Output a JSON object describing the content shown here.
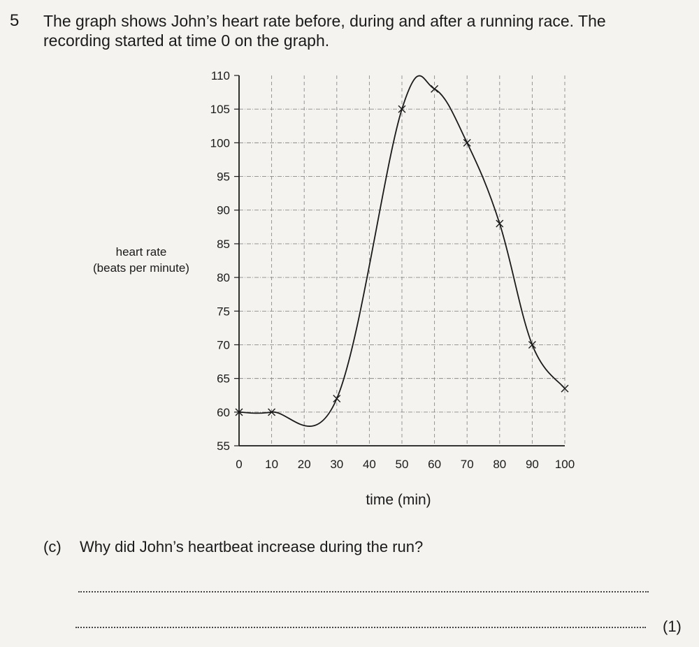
{
  "question": {
    "number": "5",
    "intro_line1": "The graph shows John’s heart rate before, during and after a running race. The",
    "intro_line2": "recording started at time 0 on the graph."
  },
  "chart_data": {
    "type": "line",
    "xlabel": "time (min)",
    "ylabel_line1": "heart rate",
    "ylabel_line2": "(beats per minute)",
    "xlim": [
      0,
      100
    ],
    "ylim": [
      55,
      110
    ],
    "x_ticks": [
      0,
      10,
      20,
      30,
      40,
      50,
      60,
      70,
      80,
      90,
      100
    ],
    "y_ticks": [
      55,
      60,
      65,
      70,
      75,
      80,
      85,
      90,
      95,
      100,
      105,
      110
    ],
    "grid": true,
    "series": [
      {
        "x": [
          0,
          10,
          30,
          50,
          60,
          70,
          80,
          90,
          100
        ],
        "y": [
          60,
          60,
          62,
          105,
          108,
          100,
          88,
          70,
          63.5
        ],
        "marker": "x"
      }
    ],
    "line_color": "#1a1a1a",
    "grid_color": "#8a8a8a"
  },
  "part_c": {
    "label": "(c)",
    "text": "Why did John’s heartbeat increase during the run?",
    "marks": "(1)"
  }
}
